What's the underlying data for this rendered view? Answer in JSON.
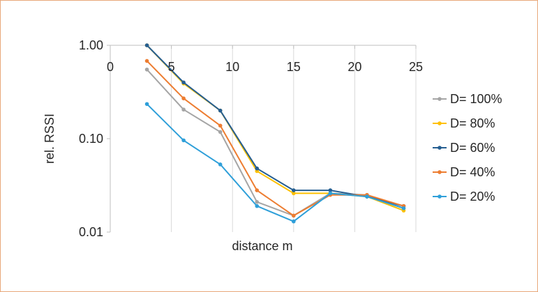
{
  "chart_data": {
    "type": "line",
    "title": "",
    "xlabel": "distance m",
    "ylabel": "rel. RSSI",
    "xlim": [
      0,
      25
    ],
    "ylim": [
      0.01,
      1.0
    ],
    "yscale": "log",
    "x_ticks": [
      "0",
      "5",
      "10",
      "15",
      "20",
      "25"
    ],
    "y_ticks": [
      "1.00",
      "0.10",
      "0.01"
    ],
    "x_axis_position": "top",
    "grid": "vertical",
    "legend_position": "right",
    "x": [
      3,
      6,
      9,
      12,
      15,
      18,
      21,
      24
    ],
    "series": [
      {
        "name": "D= 100%",
        "color": "#a5a5a5",
        "values": [
          0.55,
          0.205,
          0.118,
          0.021,
          0.015,
          0.026,
          0.025,
          0.018
        ]
      },
      {
        "name": "D= 80%",
        "color": "#ffc000",
        "values": [
          1.0,
          0.39,
          0.2,
          0.045,
          0.026,
          0.026,
          0.024,
          0.017
        ]
      },
      {
        "name": "D= 60%",
        "color": "#255e91",
        "values": [
          1.0,
          0.4,
          0.2,
          0.048,
          0.028,
          0.028,
          0.024,
          0.019
        ]
      },
      {
        "name": "D= 40%",
        "color": "#ed7d31",
        "values": [
          0.68,
          0.27,
          0.138,
          0.028,
          0.015,
          0.025,
          0.025,
          0.019
        ]
      },
      {
        "name": "D= 20%",
        "color": "#2e9fd9",
        "values": [
          0.235,
          0.096,
          0.053,
          0.019,
          0.013,
          0.026,
          0.024,
          0.018
        ]
      }
    ]
  }
}
